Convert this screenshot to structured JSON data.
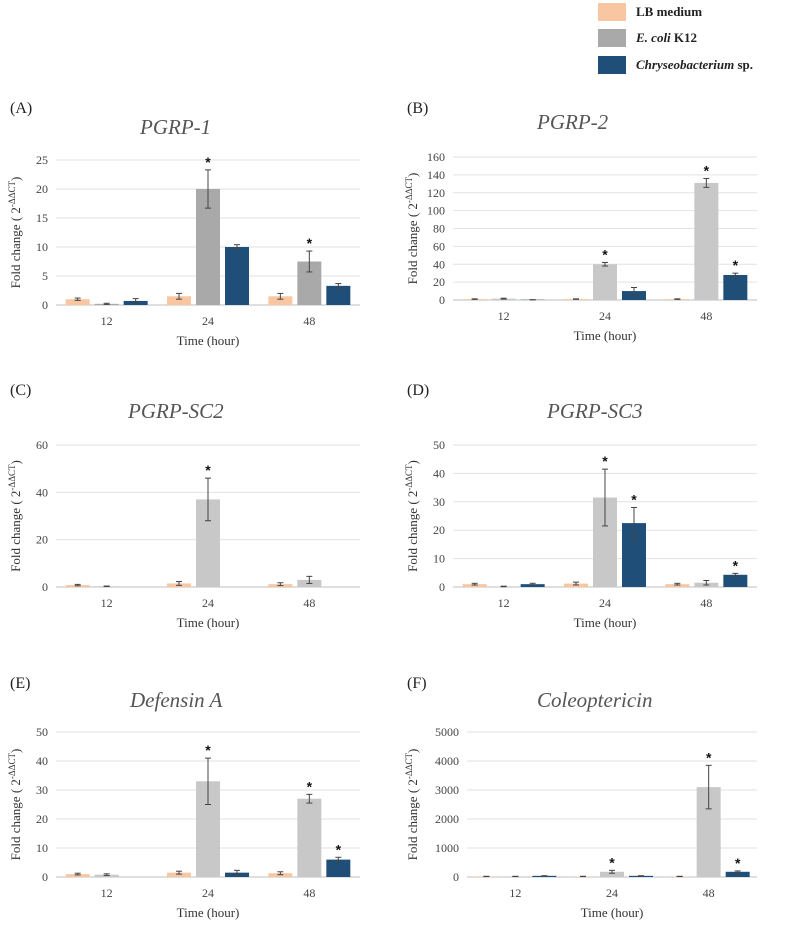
{
  "legend": {
    "items": [
      {
        "label": "LB medium",
        "italic_part": "",
        "color": "#f8c6a0"
      },
      {
        "label": " K12",
        "italic_part": "E. coli",
        "color": "#a9a9a9"
      },
      {
        "label": " sp.",
        "italic_part": "Chryseobacterium",
        "color": "#1f4e79"
      }
    ]
  },
  "chart_data": [
    {
      "type": "bar",
      "panel": "(A)",
      "title": "PGRP-1",
      "xlabel": "Time (hour)",
      "ylabel": "Fold change ( 2",
      "ylabel_sup": "-ΔΔCT",
      "ylabel_end": ")",
      "categories": [
        "12",
        "24",
        "48"
      ],
      "ylim": [
        0,
        25
      ],
      "yticks": [
        0,
        5,
        10,
        15,
        20,
        25
      ],
      "ecoli_color": "#a9a9a9",
      "series": [
        {
          "name": "LB medium",
          "values": [
            1.0,
            1.5,
            1.5
          ],
          "errors": [
            0.2,
            0.5,
            0.5
          ]
        },
        {
          "name": "E. coli K12",
          "values": [
            0.2,
            20.0,
            7.5
          ],
          "errors": [
            0.1,
            3.3,
            1.8
          ]
        },
        {
          "name": "Chryseobacterium sp.",
          "values": [
            0.7,
            10.0,
            3.3
          ],
          "errors": [
            0.4,
            0.4,
            0.4
          ]
        }
      ],
      "significance": [
        {
          "series": 1,
          "category": 1,
          "mark": "*"
        },
        {
          "series": 1,
          "category": 2,
          "mark": "*"
        }
      ]
    },
    {
      "type": "bar",
      "panel": "(B)",
      "title": "PGRP-2",
      "xlabel": "Time (hour)",
      "ylabel": "Fold change ( 2",
      "ylabel_sup": "-ΔΔCT",
      "ylabel_end": ")",
      "categories": [
        "12",
        "24",
        "48"
      ],
      "ylim": [
        0,
        160
      ],
      "yticks": [
        0,
        20,
        40,
        60,
        80,
        100,
        120,
        140,
        160
      ],
      "ecoli_color": "#c8c8c8",
      "series": [
        {
          "name": "LB medium",
          "values": [
            1.0,
            1.0,
            1.0
          ],
          "errors": [
            0.3,
            0.3,
            0.3
          ]
        },
        {
          "name": "E. coli K12",
          "values": [
            1.5,
            40.0,
            131.0
          ],
          "errors": [
            0.5,
            2.0,
            5.0
          ]
        },
        {
          "name": "Chryseobacterium sp.",
          "values": [
            0.3,
            10.0,
            28.0
          ],
          "errors": [
            0.1,
            4.0,
            2.0
          ]
        }
      ],
      "significance": [
        {
          "series": 1,
          "category": 1,
          "mark": "*"
        },
        {
          "series": 1,
          "category": 2,
          "mark": "*"
        },
        {
          "series": 2,
          "category": 2,
          "mark": "*"
        }
      ]
    },
    {
      "type": "bar",
      "panel": "(C)",
      "title": "PGRP-SC2",
      "xlabel": "Time (hour)",
      "ylabel": "Fold change ( 2",
      "ylabel_sup": "-ΔΔCT",
      "ylabel_end": ")",
      "categories": [
        "12",
        "24",
        "48"
      ],
      "ylim": [
        0,
        60
      ],
      "yticks": [
        0,
        20,
        40,
        60
      ],
      "ecoli_color": "#c8c8c8",
      "series": [
        {
          "name": "LB medium",
          "values": [
            0.8,
            1.5,
            1.2
          ],
          "errors": [
            0.3,
            0.8,
            0.6
          ]
        },
        {
          "name": "E. coli K12",
          "values": [
            0.3,
            37.0,
            3.0
          ],
          "errors": [
            0.1,
            9.0,
            1.5
          ]
        },
        {
          "name": "Chryseobacterium sp.",
          "values": [
            0.0,
            0.0,
            0.0
          ],
          "errors": [
            0,
            0,
            0
          ]
        }
      ],
      "significance": [
        {
          "series": 1,
          "category": 1,
          "mark": "*"
        }
      ]
    },
    {
      "type": "bar",
      "panel": "(D)",
      "title": "PGRP-SC3",
      "xlabel": "Time (hour)",
      "ylabel": "Fold change ( 2",
      "ylabel_sup": "-ΔΔCT",
      "ylabel_end": ")",
      "categories": [
        "12",
        "24",
        "48"
      ],
      "ylim": [
        0,
        50
      ],
      "yticks": [
        0,
        10,
        20,
        30,
        40,
        50
      ],
      "ecoli_color": "#c8c8c8",
      "series": [
        {
          "name": "LB medium",
          "values": [
            1.0,
            1.2,
            1.0
          ],
          "errors": [
            0.3,
            0.5,
            0.3
          ]
        },
        {
          "name": "E. coli K12",
          "values": [
            0.2,
            31.5,
            1.5
          ],
          "errors": [
            0.1,
            10.0,
            0.8
          ]
        },
        {
          "name": "Chryseobacterium sp.",
          "values": [
            1.0,
            22.5,
            4.3
          ],
          "errors": [
            0.3,
            5.5,
            0.5
          ]
        }
      ],
      "significance": [
        {
          "series": 1,
          "category": 1,
          "mark": "*"
        },
        {
          "series": 2,
          "category": 1,
          "mark": "*"
        },
        {
          "series": 2,
          "category": 2,
          "mark": "*"
        }
      ]
    },
    {
      "type": "bar",
      "panel": "(E)",
      "title": "Defensin A",
      "xlabel": "Time (hour)",
      "ylabel": "Fold change ( 2",
      "ylabel_sup": "-ΔΔCT",
      "ylabel_end": ")",
      "categories": [
        "12",
        "24",
        "48"
      ],
      "ylim": [
        0,
        50
      ],
      "yticks": [
        0,
        10,
        20,
        30,
        40,
        50
      ],
      "ecoli_color": "#c8c8c8",
      "series": [
        {
          "name": "LB medium",
          "values": [
            1.0,
            1.5,
            1.3
          ],
          "errors": [
            0.3,
            0.5,
            0.5
          ]
        },
        {
          "name": "E. coli K12",
          "values": [
            0.8,
            33.0,
            27.0
          ],
          "errors": [
            0.3,
            8.0,
            1.5
          ]
        },
        {
          "name": "Chryseobacterium sp.",
          "values": [
            0.0,
            1.5,
            6.0
          ],
          "errors": [
            0,
            0.8,
            0.8
          ]
        }
      ],
      "significance": [
        {
          "series": 1,
          "category": 1,
          "mark": "*"
        },
        {
          "series": 1,
          "category": 2,
          "mark": "*"
        },
        {
          "series": 2,
          "category": 2,
          "mark": "*"
        }
      ]
    },
    {
      "type": "bar",
      "panel": "(F)",
      "title": "Coleoptericin",
      "xlabel": "Time (hour)",
      "ylabel": "Fold change ( 2",
      "ylabel_sup": "-ΔΔCT",
      "ylabel_end": ")",
      "categories": [
        "12",
        "24",
        "48"
      ],
      "ylim": [
        0,
        5000
      ],
      "yticks": [
        0,
        1000,
        2000,
        3000,
        4000,
        5000
      ],
      "ecoli_color": "#c8c8c8",
      "series": [
        {
          "name": "LB medium",
          "values": [
            20,
            20,
            20
          ],
          "errors": [
            5,
            5,
            5
          ]
        },
        {
          "name": "E. coli K12",
          "values": [
            20,
            180,
            3100
          ],
          "errors": [
            5,
            50,
            750
          ]
        },
        {
          "name": "Chryseobacterium sp.",
          "values": [
            40,
            40,
            180
          ],
          "errors": [
            5,
            5,
            30
          ]
        }
      ],
      "significance": [
        {
          "series": 1,
          "category": 1,
          "mark": "*"
        },
        {
          "series": 1,
          "category": 2,
          "mark": "*"
        },
        {
          "series": 2,
          "category": 2,
          "mark": "*"
        }
      ]
    }
  ]
}
